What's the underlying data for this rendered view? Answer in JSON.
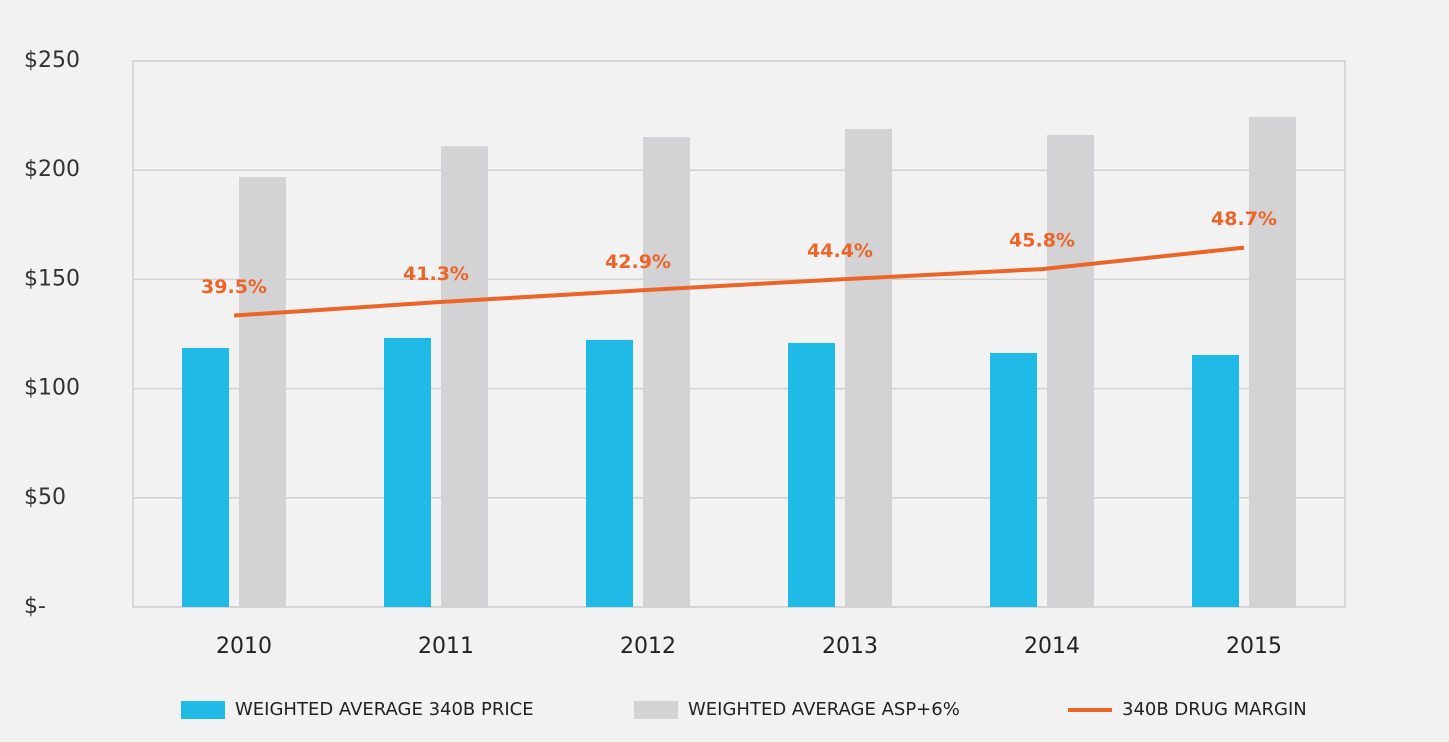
{
  "chart_data": {
    "type": "bar",
    "categories": [
      "2010",
      "2011",
      "2012",
      "2013",
      "2014",
      "2015"
    ],
    "series": [
      {
        "name": "WEIGHTED AVERAGE 340B PRICE",
        "color": "#1fbbe6",
        "values": [
          118.6,
          123.2,
          122.3,
          120.9,
          116.3,
          115.4
        ]
      },
      {
        "name": "WEIGHTED AVERAGE ASP+6%",
        "color": "#d3d3d5",
        "values": [
          196.9,
          211.0,
          215.2,
          218.9,
          216.1,
          224.4
        ]
      },
      {
        "name": "340B DRUG MARGIN",
        "color": "#ec6528",
        "type": "line",
        "axis": "y2",
        "values": [
          39.5,
          41.3,
          42.9,
          44.4,
          45.8,
          48.7
        ],
        "value_labels": [
          "39.5%",
          "41.3%",
          "42.9%",
          "44.4%",
          "45.8%",
          "48.7%"
        ]
      }
    ],
    "ylim": [
      0,
      250
    ],
    "yticks": [
      {
        "value": 0,
        "label": "$-"
      },
      {
        "value": 50,
        "label": "$50"
      },
      {
        "value": 100,
        "label": "$100"
      },
      {
        "value": 150,
        "label": "$150"
      },
      {
        "value": 200,
        "label": "$200"
      },
      {
        "value": 250,
        "label": "$250"
      }
    ],
    "y2lim": [
      0,
      74
    ],
    "grid": true,
    "legend": "bottom"
  }
}
